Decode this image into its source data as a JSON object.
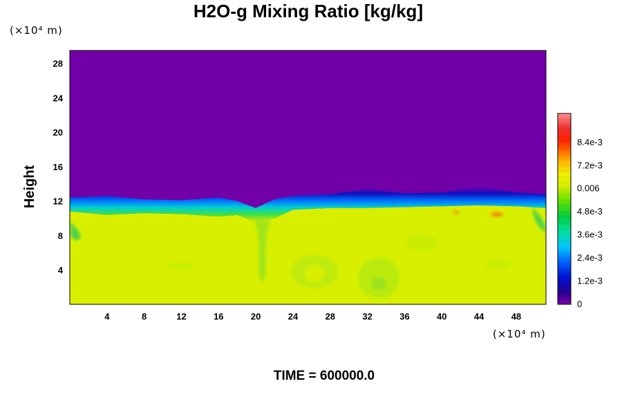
{
  "chart_data": {
    "type": "heatmap",
    "title": "H2O-g Mixing Ratio [kg/kg]",
    "xlabel": "",
    "ylabel": "Height",
    "x_unit": "(×10⁴ m)",
    "y_unit": "(×10⁴ m)",
    "x_ticks": [
      "4",
      "8",
      "12",
      "16",
      "20",
      "24",
      "28",
      "32",
      "36",
      "40",
      "44",
      "48"
    ],
    "y_ticks": [
      "4",
      "8",
      "12",
      "16",
      "20",
      "24",
      "28"
    ],
    "xlim": [
      0,
      51.2
    ],
    "ylim": [
      0,
      29.5
    ],
    "colorbar_labels": [
      "0",
      "1.2e-3",
      "2.4e-3",
      "3.6e-3",
      "4.8e-3",
      "0.006",
      "7.2e-3",
      "8.4e-3"
    ],
    "colorbar_range": [
      0,
      0.0099
    ],
    "field_summary": {
      "upper_value": 0.0,
      "lower_value": 0.006,
      "interface_height": [
        [
          0,
          10.8
        ],
        [
          4,
          10.4
        ],
        [
          8,
          10.6
        ],
        [
          12,
          10.5
        ],
        [
          16,
          10.2
        ],
        [
          18,
          10.4
        ],
        [
          20,
          9.6
        ],
        [
          22,
          10.0
        ],
        [
          24,
          11.0
        ],
        [
          28,
          11.2
        ],
        [
          32,
          11.2
        ],
        [
          36,
          11.3
        ],
        [
          40,
          11.4
        ],
        [
          44,
          11.5
        ],
        [
          48,
          11.4
        ],
        [
          51.2,
          11.2
        ]
      ]
    },
    "time_label": "TIME = 600000.0"
  },
  "colors": {
    "upper_region": "#7200a8",
    "lower_region": "#d8f000"
  }
}
